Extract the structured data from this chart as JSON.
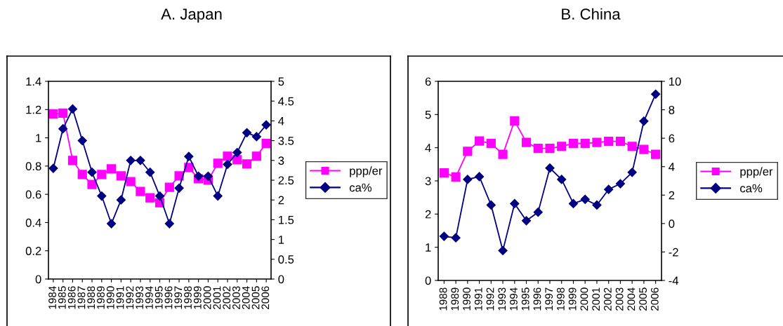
{
  "chart_data": [
    {
      "type": "line",
      "title": "A. Japan",
      "categories": [
        "1984",
        "1985",
        "1986",
        "1987",
        "1988",
        "1989",
        "1990",
        "1991",
        "1992",
        "1993",
        "1994",
        "1995",
        "1996",
        "1997",
        "1998",
        "1999",
        "2000",
        "2001",
        "2002",
        "2003",
        "2004",
        "2005",
        "2006"
      ],
      "series": [
        {
          "name": "ppp/er",
          "color": "#ff00ff",
          "marker": "square",
          "values": [
            1.17,
            1.175,
            0.84,
            0.74,
            0.67,
            0.74,
            0.78,
            0.73,
            0.69,
            0.62,
            0.575,
            0.54,
            0.65,
            0.73,
            0.79,
            0.71,
            0.7,
            0.82,
            0.87,
            0.845,
            0.815,
            0.87,
            0.96
          ]
        },
        {
          "name": "ca%",
          "color": "#000080",
          "marker": "diamond",
          "axis": "y2",
          "values": [
            2.8,
            3.8,
            4.3,
            3.5,
            2.7,
            2.1,
            1.4,
            2.0,
            3.0,
            3.0,
            2.7,
            2.1,
            1.4,
            2.3,
            3.1,
            2.6,
            2.6,
            2.1,
            2.9,
            3.2,
            3.7,
            3.6,
            3.9
          ]
        }
      ],
      "ylim": [
        0,
        1.4
      ],
      "yticks": [
        0,
        0.2,
        0.4,
        0.6,
        0.8,
        1,
        1.2,
        1.4
      ],
      "y2lim": [
        0,
        5
      ],
      "y2ticks": [
        0,
        0.5,
        1,
        1.5,
        2,
        2.5,
        3,
        3.5,
        4,
        4.5,
        5
      ],
      "grid": false,
      "legend": "right"
    },
    {
      "type": "line",
      "title": "B. China",
      "categories": [
        "1988",
        "1989",
        "1990",
        "1991",
        "1992",
        "1993",
        "1994",
        "1995",
        "1996",
        "1997",
        "1998",
        "1999",
        "2000",
        "2001",
        "2002",
        "2003",
        "2004",
        "2005",
        "2006"
      ],
      "series": [
        {
          "name": "ppp/er",
          "color": "#ff00ff",
          "marker": "square",
          "values": [
            3.24,
            3.12,
            3.89,
            4.2,
            4.13,
            3.8,
            4.81,
            4.16,
            3.98,
            3.98,
            4.04,
            4.13,
            4.13,
            4.16,
            4.19,
            4.19,
            4.04,
            3.95,
            3.8
          ]
        },
        {
          "name": "ca%",
          "color": "#000080",
          "marker": "diamond",
          "axis": "y2",
          "values": [
            -0.9,
            -1.0,
            3.1,
            3.3,
            1.3,
            -1.9,
            1.4,
            0.2,
            0.8,
            3.9,
            3.1,
            1.4,
            1.7,
            1.3,
            2.4,
            2.8,
            3.6,
            7.2,
            9.1
          ]
        }
      ],
      "ylim": [
        0,
        6
      ],
      "yticks": [
        0,
        1,
        2,
        3,
        4,
        5,
        6
      ],
      "y2lim": [
        -4,
        10
      ],
      "y2ticks": [
        -4,
        -2,
        0,
        2,
        4,
        6,
        8,
        10
      ],
      "grid": false,
      "legend": "right"
    }
  ]
}
